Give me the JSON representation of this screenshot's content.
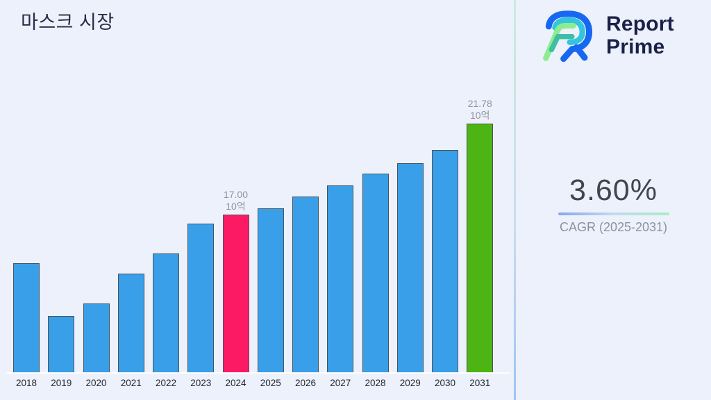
{
  "title": "마스크 시장",
  "brand": {
    "line1": "Report",
    "line2": "Prime"
  },
  "cagr": {
    "value": "3.60%",
    "label": "CAGR (2025-2031)"
  },
  "chart_data": {
    "type": "bar",
    "title": "마스크 시장",
    "unit_label": "10억",
    "categories": [
      "2018",
      "2019",
      "2020",
      "2021",
      "2022",
      "2023",
      "2024",
      "2025",
      "2026",
      "2027",
      "2028",
      "2029",
      "2030",
      "2031"
    ],
    "values": [
      14.45,
      11.67,
      12.33,
      13.9,
      14.96,
      16.53,
      17.0,
      17.33,
      17.95,
      18.53,
      19.15,
      19.7,
      20.39,
      21.78
    ],
    "ylim": [
      8.68,
      22.6
    ],
    "grid": false,
    "legend": "none",
    "annotations": [
      {
        "category": "2024",
        "lines": [
          "17.00",
          "10억"
        ]
      },
      {
        "category": "2031",
        "lines": [
          "21.78",
          "10억"
        ]
      }
    ],
    "colors": {
      "default": "#389FE8",
      "highlights": {
        "2024": "#FD1A64",
        "2031": "#4CB513"
      },
      "bar_border": "#4A525C",
      "value_label": "#8F949C",
      "tick_label": "#23262F"
    }
  }
}
